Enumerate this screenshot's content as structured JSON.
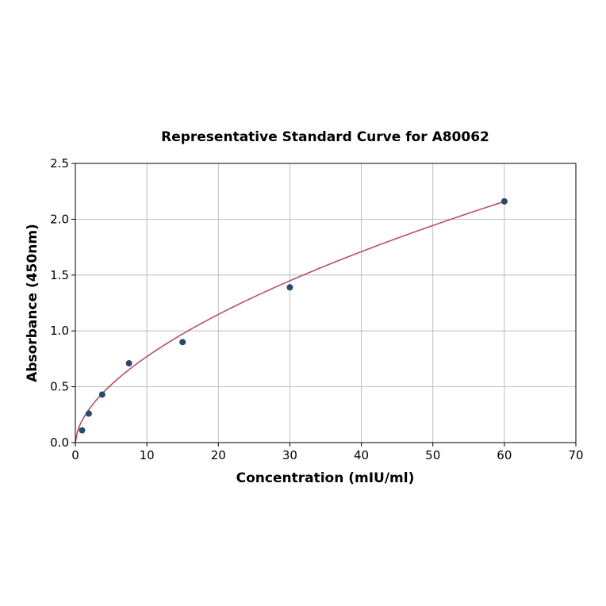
{
  "chart_data": {
    "type": "scatter",
    "title": "Representative Standard Curve for A80062",
    "xlabel": "Concentration (mIU/ml)",
    "ylabel": "Absorbance (450nm)",
    "xlim": [
      0,
      70
    ],
    "ylim": [
      0,
      2.5
    ],
    "xticks": [
      0,
      10,
      20,
      30,
      40,
      50,
      60,
      70
    ],
    "yticks": [
      0.0,
      0.5,
      1.0,
      1.5,
      2.0,
      2.5
    ],
    "xtick_labels": [
      "0",
      "10",
      "20",
      "30",
      "40",
      "50",
      "60",
      "70"
    ],
    "ytick_labels": [
      "0.0",
      "0.5",
      "1.0",
      "1.5",
      "2.0",
      "2.5"
    ],
    "grid": true,
    "series": [
      {
        "kind": "points",
        "color": "#2b4a6b",
        "x": [
          0.94,
          1.88,
          3.75,
          7.5,
          15,
          30,
          60
        ],
        "y": [
          0.11,
          0.26,
          0.43,
          0.71,
          0.9,
          1.39,
          2.16
        ]
      },
      {
        "kind": "fit-curve",
        "color": "#b5506f",
        "x_range": [
          0,
          60
        ],
        "model": "power",
        "a": 0.205,
        "b": 0.575
      }
    ]
  }
}
